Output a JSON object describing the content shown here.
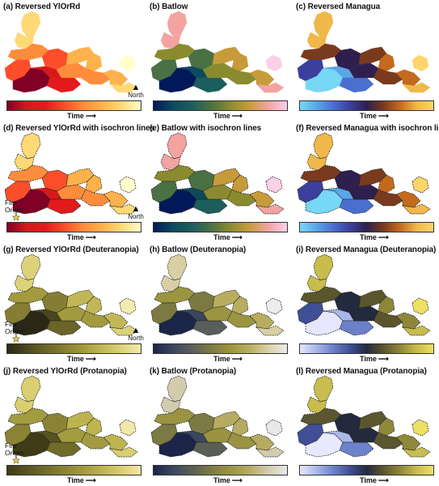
{
  "north_label": "North",
  "fire_origin_lines": [
    "Fire",
    "Origin"
  ],
  "time_label": "Time",
  "time_arrow": "⟶",
  "north_arrow": "▲",
  "colormaps": {
    "yorrd": [
      "#800026",
      "#d7191c",
      "#e31a1c",
      "#fc4e2a",
      "#fd8d3c",
      "#feb24c",
      "#fed976",
      "#ffffcc"
    ],
    "batlow": [
      "#011959",
      "#0d4a5f",
      "#1c5d5e",
      "#4a7143",
      "#8a8b2f",
      "#c79b3a",
      "#f3a3a0",
      "#fbd1e8"
    ],
    "managua": [
      "#78d7f5",
      "#5aa6e6",
      "#4a6fd1",
      "#3c3f9e",
      "#2e1f4e",
      "#7a3a1e",
      "#c46a1e",
      "#f0b84a",
      "#ffd56a"
    ],
    "yorrd_deut": [
      "#2a2815",
      "#4a4620",
      "#6a6428",
      "#857e32",
      "#a39a3f",
      "#c2b757",
      "#ddd27a",
      "#f3ebb0"
    ],
    "batlow_deut": [
      "#1b2547",
      "#3a4560",
      "#5a5e5a",
      "#7c7a42",
      "#9b9440",
      "#b8ad5e",
      "#d8d0a4",
      "#ececec"
    ],
    "managua_deut": [
      "#e6e6ff",
      "#a9b6e8",
      "#6b80c8",
      "#3e4f95",
      "#232a3e",
      "#5a552c",
      "#8e8638",
      "#c7bc4c",
      "#efe063"
    ],
    "yorrd_prot": [
      "#3e3b16",
      "#575320",
      "#726c29",
      "#8a8333",
      "#a39b3f",
      "#bdb450",
      "#d9cf70",
      "#f2e8a8"
    ],
    "batlow_prot": [
      "#1c2549",
      "#3a465e",
      "#5a5f55",
      "#7b7a44",
      "#9a9342",
      "#b6ab60",
      "#d2cbae",
      "#e8e8e8"
    ],
    "managua_prot": [
      "#e8e8ff",
      "#aab8ea",
      "#6c82ca",
      "#404f96",
      "#242a3d",
      "#5b5630",
      "#8f873a",
      "#c8bd4e",
      "#eee064"
    ]
  },
  "panels": [
    {
      "title": "(a) Reversed YlOrRd",
      "cmap": "yorrd",
      "isochron": false,
      "north": true,
      "fire": false
    },
    {
      "title": "(b) Batlow",
      "cmap": "batlow",
      "isochron": false,
      "north": false,
      "fire": false
    },
    {
      "title": "(c) Reversed Managua",
      "cmap": "managua",
      "isochron": false,
      "north": false,
      "fire": false
    },
    {
      "title": "(d) Reversed YlOrRd with isochron lines",
      "cmap": "yorrd",
      "isochron": true,
      "north": true,
      "fire": true
    },
    {
      "title": "(e) Batlow with isochron lines",
      "cmap": "batlow",
      "isochron": true,
      "north": false,
      "fire": false
    },
    {
      "title": "(f) Reversed Managua with isochron lines",
      "cmap": "managua",
      "isochron": true,
      "north": false,
      "fire": false
    },
    {
      "title": "(g) Reversed YlOrRd (Deuteranopia)",
      "cmap": "yorrd_deut",
      "isochron": true,
      "north": true,
      "fire": true
    },
    {
      "title": "(h) Batlow (Deuteranopia)",
      "cmap": "batlow_deut",
      "isochron": true,
      "north": false,
      "fire": false
    },
    {
      "title": "(i) Reversed Managua (Deuteranopia)",
      "cmap": "managua_deut",
      "isochron": true,
      "north": false,
      "fire": false
    },
    {
      "title": "(j) Reversed YlOrRd (Protanopia)",
      "cmap": "yorrd_prot",
      "isochron": true,
      "north": false,
      "fire": true
    },
    {
      "title": "(k) Batlow (Protanopia)",
      "cmap": "batlow_prot",
      "isochron": true,
      "north": false,
      "fire": false
    },
    {
      "title": "(l) Reversed Managua (Protanopia)",
      "cmap": "managua_prot",
      "isochron": true,
      "north": false,
      "fire": false
    }
  ]
}
